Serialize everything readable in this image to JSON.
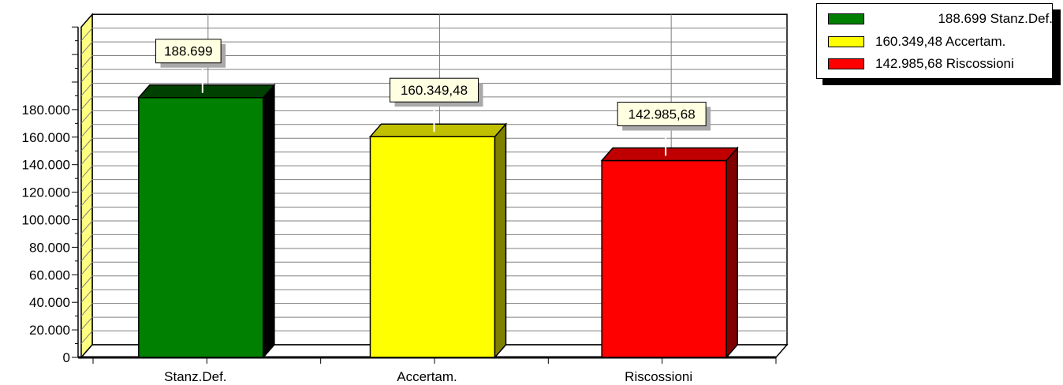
{
  "chart_data": {
    "type": "bar",
    "categories": [
      "Stanz.Def.",
      "Accertam.",
      "Riscossioni"
    ],
    "values": [
      188699,
      160349.48,
      142985.68
    ],
    "data_labels": [
      "188.699",
      "160.349,48",
      "142.985,68"
    ],
    "colors": [
      "#008000",
      "#ffff00",
      "#ff0000"
    ],
    "side_colors": [
      "#000000",
      "#808000",
      "#800000"
    ],
    "top_colors": [
      "#004000",
      "#c0c000",
      "#c00000"
    ],
    "y_ticks": [
      {
        "value": 0,
        "label": "0"
      },
      {
        "value": 20000,
        "label": "20.000"
      },
      {
        "value": 40000,
        "label": "40.000"
      },
      {
        "value": 60000,
        "label": "60.000"
      },
      {
        "value": 80000,
        "label": "80.000"
      },
      {
        "value": 100000,
        "label": "100.000"
      },
      {
        "value": 120000,
        "label": "120.000"
      },
      {
        "value": 140000,
        "label": "140.000"
      },
      {
        "value": 160000,
        "label": "160.000"
      },
      {
        "value": 180000,
        "label": "180.000"
      }
    ],
    "ylim": [
      0,
      240000
    ],
    "grid": true,
    "three_d": true,
    "legend_position": "top-right",
    "legend": [
      {
        "label": "188.699 Stanz.Def.",
        "color": "#008000"
      },
      {
        "label": "160.349,48 Accertam.",
        "color": "#ffff00"
      },
      {
        "label": "142.985,68 Riscossioni",
        "color": "#ff0000"
      }
    ]
  }
}
